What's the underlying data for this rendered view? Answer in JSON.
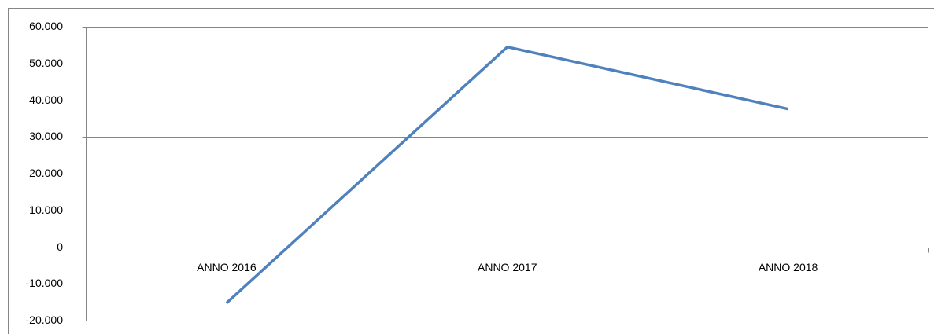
{
  "chart_data": {
    "type": "line",
    "categories": [
      "ANNO 2016",
      "ANNO 2017",
      "ANNO 2018"
    ],
    "series": [
      {
        "color": "#4f81bd",
        "values": [
          -15200,
          54500,
          37600
        ]
      }
    ],
    "ylim": [
      -20000,
      60000
    ],
    "yticks": [
      {
        "value": -20000,
        "label": "-20.000"
      },
      {
        "value": -10000,
        "label": "-10.000"
      },
      0,
      {
        "value": 10000,
        "label": "10.000"
      },
      {
        "value": 20000,
        "label": "20.000"
      },
      {
        "value": 30000,
        "label": "30.000"
      },
      {
        "value": 40000,
        "label": "40.000"
      },
      {
        "value": 50000,
        "label": "50.000"
      },
      {
        "value": 60000,
        "label": "60.000"
      }
    ],
    "grid": true
  }
}
